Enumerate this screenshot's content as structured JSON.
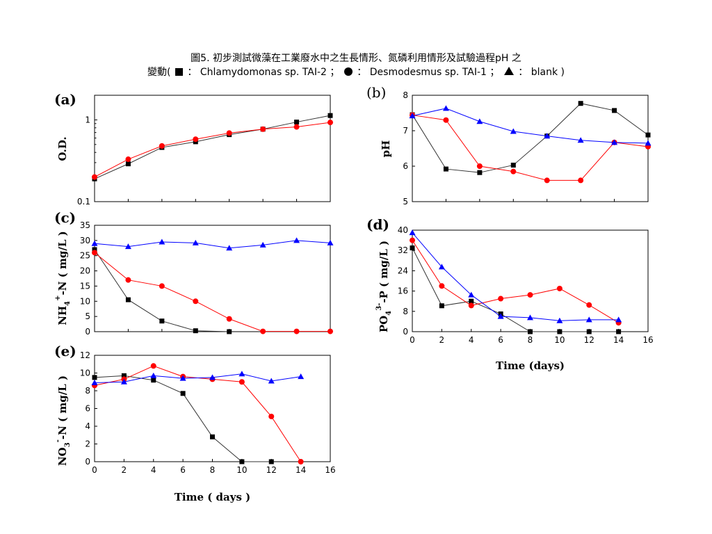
{
  "caption": {
    "line1": "圖5. 初步測試微藻在工業廢水中之生長情形、氮磷利用情形及試驗過程pH 之",
    "line2_prefix": "變動(",
    "legend": [
      {
        "marker": "square",
        "sep": "：",
        "name": "Chlamydomonas sp. TAI-2",
        "after": "；"
      },
      {
        "marker": "circle",
        "sep": "：",
        "name": "Desmodesmus sp. TAI-1",
        "after": "；"
      },
      {
        "marker": "triangle",
        "sep": "：",
        "name": "blank",
        "after": " )"
      }
    ]
  },
  "colors": {
    "chlamydomonas": "#000000",
    "desmodesmus": "#ff0000",
    "blank": "#0000ff",
    "line_chlamy": "#333333"
  },
  "chart_data": [
    {
      "id": "a",
      "label": "(a)",
      "type": "line",
      "yscale": "log",
      "ylabel": "O.D.",
      "xlabel": "",
      "xlim": [
        0,
        14
      ],
      "ylim": [
        0.1,
        2.0
      ],
      "yticks": [
        0.1,
        1
      ],
      "yticklabels": [
        "0.1",
        "1"
      ],
      "xticks": [],
      "xticklabels": [],
      "series": [
        {
          "name": "Chlamydomonas sp. TAI-2",
          "marker": "square",
          "color": "#000000",
          "x": [
            0,
            2,
            4,
            6,
            8,
            10,
            12,
            14
          ],
          "y": [
            0.19,
            0.29,
            0.46,
            0.54,
            0.66,
            0.77,
            0.94,
            1.13
          ]
        },
        {
          "name": "Desmodesmus sp. TAI-1",
          "marker": "circle",
          "color": "#ff0000",
          "x": [
            0,
            2,
            4,
            6,
            8,
            10,
            12,
            14
          ],
          "y": [
            0.2,
            0.33,
            0.48,
            0.58,
            0.69,
            0.77,
            0.82,
            0.93
          ]
        }
      ]
    },
    {
      "id": "b",
      "label": "(b)",
      "type": "line",
      "yscale": "linear",
      "ylabel": "pH",
      "xlabel": "",
      "xlim": [
        0,
        14
      ],
      "ylim": [
        5,
        8
      ],
      "yticks": [
        5,
        6,
        7,
        8
      ],
      "yticklabels": [
        "5",
        "6",
        "7",
        "8"
      ],
      "xticks": [],
      "xticklabels": [],
      "series": [
        {
          "name": "Chlamydomonas sp. TAI-2",
          "marker": "square",
          "color": "#000000",
          "x": [
            0,
            2,
            4,
            6,
            8,
            10,
            12,
            14
          ],
          "y": [
            7.45,
            5.92,
            5.82,
            6.03,
            6.85,
            7.77,
            7.57,
            6.88
          ]
        },
        {
          "name": "Desmodesmus sp. TAI-1",
          "marker": "circle",
          "color": "#ff0000",
          "x": [
            0,
            2,
            4,
            6,
            8,
            10,
            12,
            14
          ],
          "y": [
            7.44,
            7.3,
            6.0,
            5.85,
            5.6,
            5.6,
            6.67,
            6.55
          ]
        },
        {
          "name": "blank",
          "marker": "triangle",
          "color": "#0000ff",
          "x": [
            0,
            2,
            4,
            6,
            8,
            10,
            12,
            14
          ],
          "y": [
            7.42,
            7.63,
            7.26,
            6.98,
            6.85,
            6.73,
            6.67,
            6.65
          ]
        }
      ]
    },
    {
      "id": "c",
      "label": "(c)",
      "type": "line",
      "yscale": "linear",
      "ylabel": "NH4+-N ( mg/L )",
      "xlabel": "",
      "xlim": [
        0,
        14
      ],
      "ylim": [
        0,
        35
      ],
      "yticks": [
        0,
        5,
        10,
        15,
        20,
        25,
        30,
        35
      ],
      "yticklabels": [
        "0",
        "5",
        "10",
        "15",
        "20",
        "25",
        "30",
        "35"
      ],
      "xticks": [],
      "xticklabels": [],
      "series": [
        {
          "name": "Chlamydomonas sp. TAI-2",
          "marker": "square",
          "color": "#000000",
          "x": [
            0,
            2,
            4,
            6,
            8
          ],
          "y": [
            27,
            10.5,
            3.5,
            0.3,
            0
          ]
        },
        {
          "name": "Desmodesmus sp. TAI-1",
          "marker": "circle",
          "color": "#ff0000",
          "x": [
            0,
            2,
            4,
            6,
            8,
            10,
            12,
            14
          ],
          "y": [
            26,
            17,
            15,
            10,
            4.2,
            0.1,
            0.1,
            0.1
          ]
        },
        {
          "name": "blank",
          "marker": "triangle",
          "color": "#0000ff",
          "x": [
            0,
            2,
            4,
            6,
            8,
            10,
            12,
            14
          ],
          "y": [
            29,
            28,
            29.5,
            29.2,
            27.5,
            28.5,
            30,
            29.2
          ]
        }
      ]
    },
    {
      "id": "d",
      "label": "(d)",
      "type": "line",
      "yscale": "linear",
      "ylabel": "PO43--P ( mg/L )",
      "xlabel": "Time (days)",
      "xlim": [
        0,
        16
      ],
      "ylim": [
        0,
        40
      ],
      "yticks": [
        0,
        8,
        16,
        24,
        32,
        40
      ],
      "yticklabels": [
        "0",
        "8",
        "16",
        "24",
        "32",
        "40"
      ],
      "xticks": [
        0,
        2,
        4,
        6,
        8,
        10,
        12,
        14,
        16
      ],
      "xticklabels": [
        "0",
        "2",
        "4",
        "6",
        "8",
        "10",
        "12",
        "14",
        "16"
      ],
      "series": [
        {
          "name": "Chlamydomonas sp. TAI-2",
          "marker": "square",
          "color": "#000000",
          "x": [
            0,
            2,
            4,
            6,
            8,
            10,
            12,
            14
          ],
          "y": [
            33,
            10.2,
            12,
            7,
            0,
            0,
            0,
            0
          ]
        },
        {
          "name": "Desmodesmus sp. TAI-1",
          "marker": "circle",
          "color": "#ff0000",
          "x": [
            0,
            2,
            4,
            6,
            8,
            10,
            12,
            14
          ],
          "y": [
            36,
            18,
            10.3,
            13,
            14.5,
            17,
            10.5,
            3.5
          ]
        },
        {
          "name": "blank",
          "marker": "triangle",
          "color": "#0000ff",
          "x": [
            0,
            2,
            4,
            6,
            8,
            10,
            12,
            14
          ],
          "y": [
            39,
            25.5,
            14.5,
            6,
            5.5,
            4.3,
            4.7,
            4.7
          ]
        }
      ]
    },
    {
      "id": "e",
      "label": "(e)",
      "type": "line",
      "yscale": "linear",
      "ylabel": "NO3--N ( mg/L )",
      "xlabel": "Time ( days )",
      "xlim": [
        0,
        16
      ],
      "ylim": [
        0,
        12
      ],
      "yticks": [
        0,
        2,
        4,
        6,
        8,
        10,
        12
      ],
      "yticklabels": [
        "0",
        "2",
        "4",
        "6",
        "8",
        "10",
        "12"
      ],
      "xticks": [
        0,
        2,
        4,
        6,
        8,
        10,
        12,
        14,
        16
      ],
      "xticklabels": [
        "0",
        "2",
        "4",
        "6",
        "8",
        "10",
        "12",
        "14",
        "16"
      ],
      "series": [
        {
          "name": "Chlamydomonas sp. TAI-2",
          "marker": "square",
          "color": "#000000",
          "x": [
            0,
            2,
            4,
            6,
            8,
            10,
            12
          ],
          "y": [
            9.5,
            9.7,
            9.2,
            7.7,
            2.8,
            0,
            0
          ]
        },
        {
          "name": "Desmodesmus sp. TAI-1",
          "marker": "circle",
          "color": "#ff0000",
          "x": [
            0,
            2,
            4,
            6,
            8,
            10,
            12,
            14
          ],
          "y": [
            8.6,
            9.3,
            10.8,
            9.6,
            9.3,
            9.0,
            5.1,
            0
          ]
        },
        {
          "name": "blank",
          "marker": "triangle",
          "color": "#0000ff",
          "x": [
            0,
            2,
            4,
            6,
            8,
            10,
            12,
            14
          ],
          "y": [
            8.9,
            9.0,
            9.7,
            9.4,
            9.5,
            9.9,
            9.1,
            9.6
          ]
        }
      ]
    }
  ]
}
